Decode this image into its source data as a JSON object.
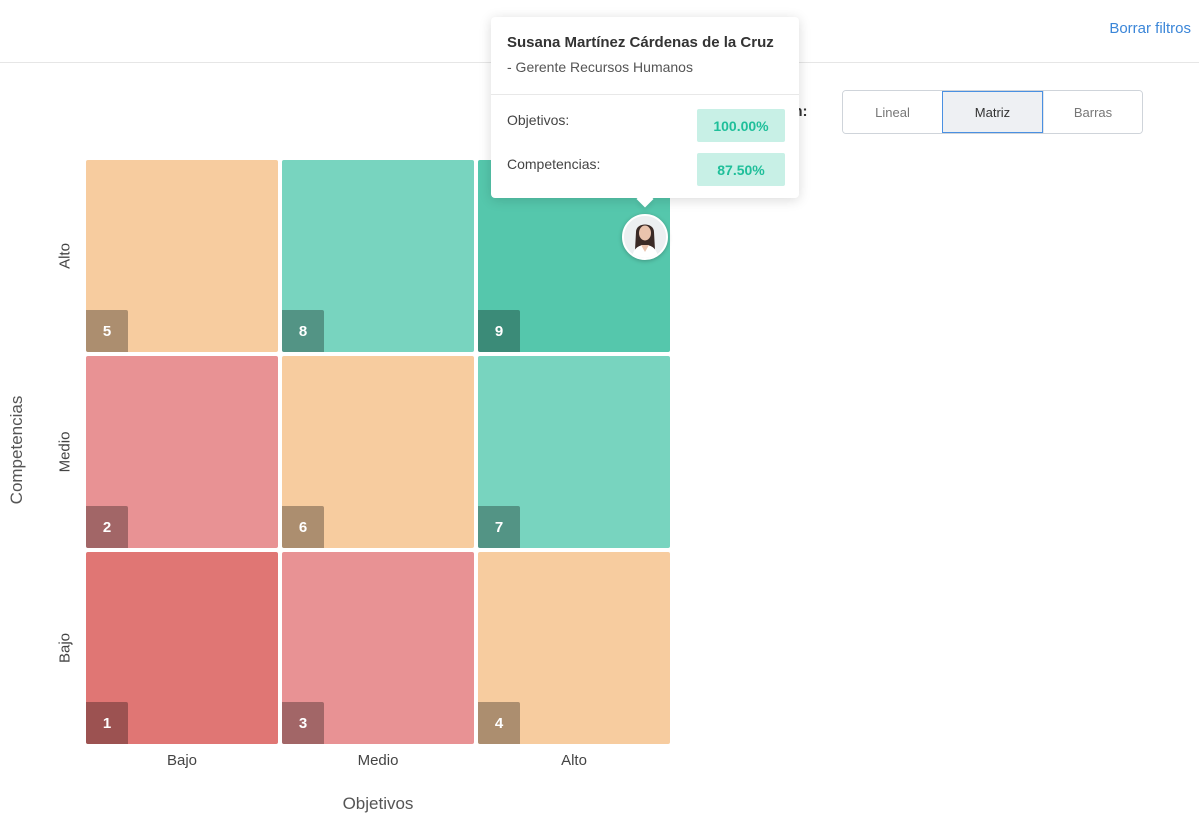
{
  "header": {
    "clear_filters": "Borrar filtros"
  },
  "view_switch": {
    "label": "ión:",
    "options": [
      "Lineal",
      "Matriz",
      "Barras"
    ],
    "selected": "Matriz"
  },
  "matrix": {
    "y_axis_title": "Competencias",
    "x_axis_title": "Objetivos",
    "y_ticks": [
      "Alto",
      "Medio",
      "Bajo"
    ],
    "x_ticks": [
      "Bajo",
      "Medio",
      "Alto"
    ],
    "cells": [
      {
        "number": "5",
        "color": "#f7cc9f"
      },
      {
        "number": "8",
        "color": "#78d4bf"
      },
      {
        "number": "9",
        "color": "#55c7ac"
      },
      {
        "number": "2",
        "color": "#e89294"
      },
      {
        "number": "6",
        "color": "#f7cc9f"
      },
      {
        "number": "7",
        "color": "#78d4bf"
      },
      {
        "number": "1",
        "color": "#e07674"
      },
      {
        "number": "3",
        "color": "#e89294"
      },
      {
        "number": "4",
        "color": "#f7cc9f"
      }
    ],
    "avatar_cell": "9"
  },
  "tooltip": {
    "name": "Susana Martínez Cárdenas de la Cruz",
    "role": "- Gerente Recursos Humanos",
    "objectives_label": "Objetivos:",
    "objectives_value": "100.00%",
    "competencies_label": "Competencias:",
    "competencies_value": "87.50%"
  }
}
